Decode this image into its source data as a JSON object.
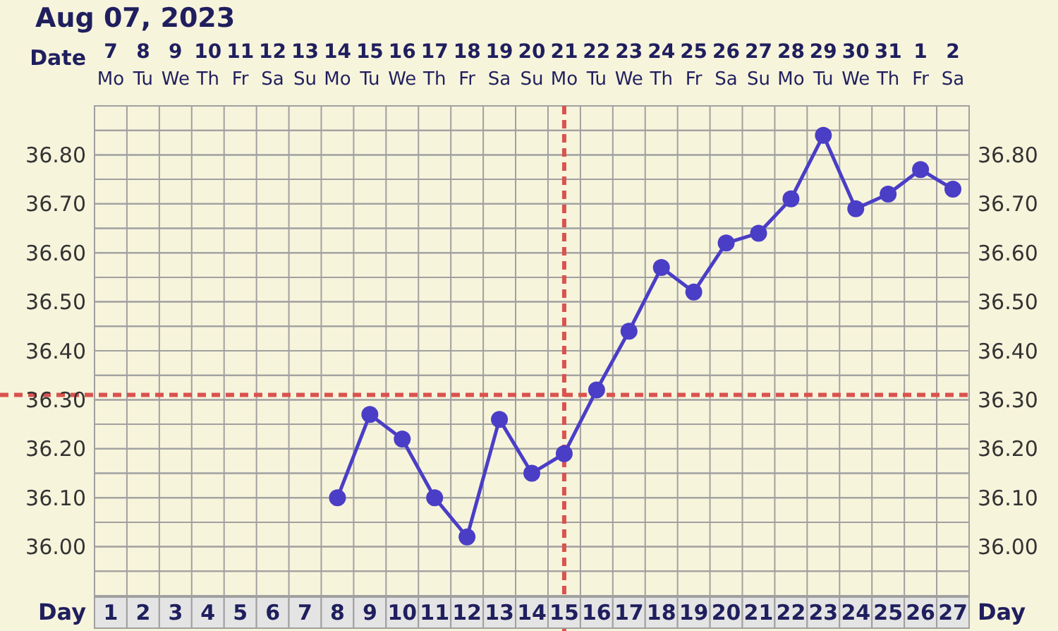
{
  "chart_data": {
    "type": "line",
    "title": "Aug 07, 2023",
    "xlabel": "Day",
    "x2label": "Date",
    "x": [
      8,
      9,
      10,
      11,
      12,
      13,
      14,
      15,
      16,
      17,
      18,
      19,
      20,
      21,
      22,
      23,
      24,
      25,
      26,
      27
    ],
    "series": [
      {
        "color": "#4a3ec6",
        "values": [
          36.1,
          36.27,
          36.22,
          36.1,
          36.02,
          36.26,
          36.15,
          36.19,
          36.32,
          36.44,
          36.57,
          36.52,
          36.62,
          36.64,
          36.71,
          36.84,
          36.69,
          36.72,
          36.77,
          36.73
        ]
      }
    ],
    "xlim": [
      0.5,
      27.5
    ],
    "xticks": [
      1,
      2,
      3,
      4,
      5,
      6,
      7,
      8,
      9,
      10,
      11,
      12,
      13,
      14,
      15,
      16,
      17,
      18,
      19,
      20,
      21,
      22,
      23,
      24,
      25,
      26,
      27
    ],
    "x2lim": [
      "2023-08-06T12:00",
      "2023-09-02T12:00"
    ],
    "x2ticks": [
      {
        "value": "2023-08-07",
        "label": "7\nMo"
      },
      {
        "value": "2023-08-08",
        "label": "8\nTu"
      },
      {
        "value": "2023-08-09",
        "label": "9\nWe"
      },
      {
        "value": "2023-08-10",
        "label": "10\nTh"
      },
      {
        "value": "2023-08-11",
        "label": "11\nFr"
      },
      {
        "value": "2023-08-12",
        "label": "12\nSa"
      },
      {
        "value": "2023-08-13",
        "label": "13\nSu"
      },
      {
        "value": "2023-08-14",
        "label": "14\nMo"
      },
      {
        "value": "2023-08-15",
        "label": "15\nTu"
      },
      {
        "value": "2023-08-16",
        "label": "16\nWe"
      },
      {
        "value": "2023-08-17",
        "label": "17\nTh"
      },
      {
        "value": "2023-08-18",
        "label": "18\nFr"
      },
      {
        "value": "2023-08-19",
        "label": "19\nSa"
      },
      {
        "value": "2023-08-20",
        "label": "20\nSu"
      },
      {
        "value": "2023-08-21",
        "label": "21\nMo"
      },
      {
        "value": "2023-08-22",
        "label": "22\nTu"
      },
      {
        "value": "2023-08-23",
        "label": "23\nWe"
      },
      {
        "value": "2023-08-24",
        "label": "24\nTh"
      },
      {
        "value": "2023-08-25",
        "label": "25\nFr"
      },
      {
        "value": "2023-08-26",
        "label": "26\nSa"
      },
      {
        "value": "2023-08-27",
        "label": "27\nSu"
      },
      {
        "value": "2023-08-28",
        "label": "28\nMo"
      },
      {
        "value": "2023-08-29",
        "label": "29\nTu"
      },
      {
        "value": "2023-08-30",
        "label": "30\nWe"
      },
      {
        "value": "2023-08-31",
        "label": "31\nTh"
      },
      {
        "value": "2023-09-01",
        "label": "1\nFr"
      },
      {
        "value": "2023-09-02",
        "label": "2\nSa"
      }
    ],
    "ylim": [
      35.9,
      36.9
    ],
    "yticks": [
      {
        "value": 35.95,
        "label": null
      },
      {
        "value": 36.0,
        "label": "36.00"
      },
      {
        "value": 36.05,
        "label": null
      },
      {
        "value": 36.1,
        "label": "36.10"
      },
      {
        "value": 36.15,
        "label": null
      },
      {
        "value": 36.2,
        "label": "36.20"
      },
      {
        "value": 36.25,
        "label": null
      },
      {
        "value": 36.3,
        "label": "36.30"
      },
      {
        "value": 36.35,
        "label": null
      },
      {
        "value": 36.4,
        "label": "36.40"
      },
      {
        "value": 36.45,
        "label": null
      },
      {
        "value": 36.5,
        "label": "36.50"
      },
      {
        "value": 36.55,
        "label": null
      },
      {
        "value": 36.6,
        "label": "36.60"
      },
      {
        "value": 36.65,
        "label": null
      },
      {
        "value": 36.7,
        "label": "36.70"
      },
      {
        "value": 36.75,
        "label": null
      },
      {
        "value": 36.8,
        "label": "36.80"
      },
      {
        "value": 36.85,
        "label": null
      }
    ],
    "y2lim": [
      35.9,
      36.9
    ],
    "y2ticks": [
      {
        "value": 35.95,
        "label": null
      },
      {
        "value": 36.0,
        "label": "36.00"
      },
      {
        "value": 36.05,
        "label": null
      },
      {
        "value": 36.1,
        "label": "36.10"
      },
      {
        "value": 36.15,
        "label": null
      },
      {
        "value": 36.2,
        "label": "36.20"
      },
      {
        "value": 36.25,
        "label": null
      },
      {
        "value": 36.3,
        "label": "36.30"
      },
      {
        "value": 36.35,
        "label": null
      },
      {
        "value": 36.4,
        "label": "36.40"
      },
      {
        "value": 36.45,
        "label": null
      },
      {
        "value": 36.5,
        "label": "36.50"
      },
      {
        "value": 36.55,
        "label": null
      },
      {
        "value": 36.6,
        "label": "36.60"
      },
      {
        "value": 36.65,
        "label": null
      },
      {
        "value": 36.7,
        "label": "36.70"
      },
      {
        "value": 36.75,
        "label": null
      },
      {
        "value": 36.8,
        "label": "36.80"
      },
      {
        "value": 36.85,
        "label": null
      }
    ],
    "ref_lines": [
      {
        "axis": "y",
        "value": 36.31,
        "color": "#d9534f",
        "line_style": "dashed"
      },
      {
        "axis": "x",
        "value": 15,
        "color": "#d9534f",
        "line_style": "dashed"
      }
    ],
    "grid": true,
    "marker": "circle",
    "line_style": "solid"
  }
}
